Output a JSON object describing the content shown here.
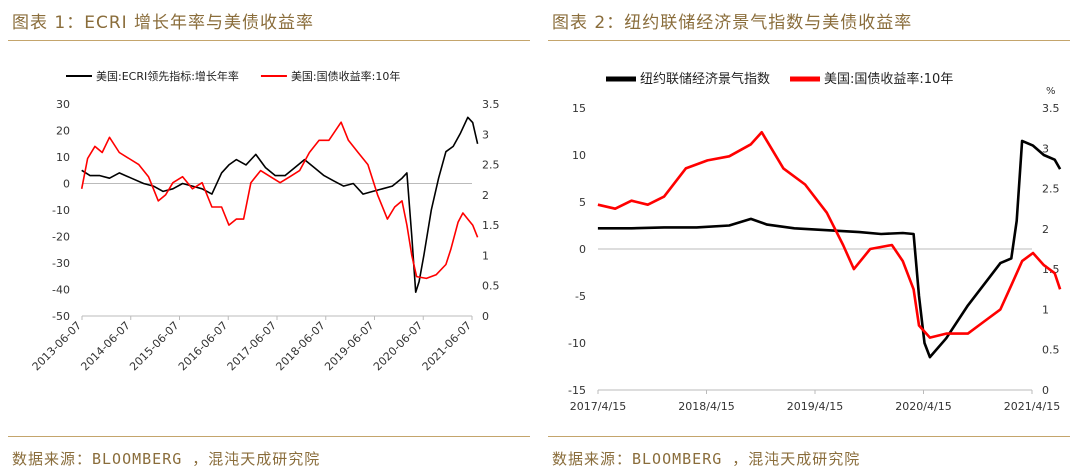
{
  "charts": [
    {
      "title": "图表 1：ECRI 增长年率与美债收益率",
      "source": "数据来源：BLOOMBERG ，混沌天成研究院"
    },
    {
      "title": "图表 2：纽约联储经济景气指数与美债收益率",
      "source": "数据来源：BLOOMBERG ，混沌天成研究院"
    }
  ],
  "chart_data": [
    {
      "type": "line",
      "title": "图表 1：ECRI 增长年率与美债收益率",
      "x_ticks": [
        "2013-06-07",
        "2014-06-07",
        "2015-06-07",
        "2016-06-07",
        "2017-06-07",
        "2018-06-07",
        "2019-06-07",
        "2020-06-07",
        "2021-06-07"
      ],
      "ylim_left": [
        -50,
        30
      ],
      "yticks_left": [
        30,
        20,
        10,
        0,
        -10,
        -20,
        -30,
        -40,
        -50
      ],
      "ylim_right": [
        0,
        3.5
      ],
      "yticks_right": [
        3.5,
        3,
        2.5,
        2,
        1.5,
        1,
        0.5,
        0
      ],
      "legend_position": "top",
      "grid": false,
      "series": [
        {
          "name": "美国:ECRI领先指标:增长年率",
          "axis": "left",
          "color": "#000000",
          "x": [
            2013.43,
            2013.6,
            2013.8,
            2014.0,
            2014.2,
            2014.45,
            2014.7,
            2014.9,
            2015.1,
            2015.3,
            2015.5,
            2015.7,
            2015.9,
            2016.1,
            2016.3,
            2016.45,
            2016.6,
            2016.8,
            2017.0,
            2017.2,
            2017.4,
            2017.6,
            2017.8,
            2018.0,
            2018.2,
            2018.4,
            2018.6,
            2018.8,
            2019.0,
            2019.2,
            2019.4,
            2019.6,
            2019.8,
            2020.0,
            2020.1,
            2020.2,
            2020.28,
            2020.35,
            2020.45,
            2020.6,
            2020.75,
            2020.9,
            2021.05,
            2021.2,
            2021.35,
            2021.45,
            2021.55
          ],
          "y": [
            5,
            3,
            3,
            2,
            4,
            2,
            0,
            -1,
            -3,
            -2,
            0,
            -1,
            -2,
            -4,
            4,
            7,
            9,
            7,
            11,
            6,
            3,
            3,
            6,
            9,
            6,
            3,
            1,
            -1,
            0,
            -4,
            -3,
            -2,
            -1,
            2,
            4,
            -20,
            -41,
            -37,
            -27,
            -10,
            2,
            12,
            14,
            19,
            25,
            23,
            15
          ]
        },
        {
          "name": "美国:国债收益率:10年",
          "axis": "right",
          "color": "#ff0000",
          "x": [
            2013.43,
            2013.55,
            2013.7,
            2013.85,
            2014.0,
            2014.2,
            2014.4,
            2014.6,
            2014.8,
            2015.0,
            2015.15,
            2015.3,
            2015.5,
            2015.7,
            2015.9,
            2016.1,
            2016.3,
            2016.45,
            2016.6,
            2016.75,
            2016.9,
            2017.1,
            2017.3,
            2017.5,
            2017.7,
            2017.9,
            2018.1,
            2018.3,
            2018.5,
            2018.75,
            2018.9,
            2019.1,
            2019.3,
            2019.5,
            2019.7,
            2019.85,
            2020.0,
            2020.1,
            2020.2,
            2020.3,
            2020.5,
            2020.7,
            2020.9,
            2021.0,
            2021.15,
            2021.25,
            2021.35,
            2021.45,
            2021.55
          ],
          "y": [
            2.1,
            2.6,
            2.8,
            2.7,
            2.95,
            2.7,
            2.6,
            2.5,
            2.3,
            1.9,
            2.0,
            2.2,
            2.3,
            2.1,
            2.2,
            1.8,
            1.8,
            1.5,
            1.6,
            1.6,
            2.2,
            2.4,
            2.3,
            2.2,
            2.3,
            2.4,
            2.7,
            2.9,
            2.9,
            3.2,
            2.9,
            2.7,
            2.5,
            2.0,
            1.6,
            1.8,
            1.9,
            1.5,
            1.0,
            0.65,
            0.62,
            0.68,
            0.85,
            1.1,
            1.55,
            1.7,
            1.6,
            1.5,
            1.3
          ]
        }
      ]
    },
    {
      "type": "line",
      "title": "图表 2：纽约联储经济景气指数与美债收益率",
      "x_ticks": [
        "2017/4/15",
        "2018/4/15",
        "2019/4/15",
        "2020/4/15",
        "2021/4/15"
      ],
      "ylim_left": [
        -15,
        15
      ],
      "yticks_left": [
        15,
        10,
        5,
        0,
        -5,
        -10,
        -15
      ],
      "ylim_right": [
        0,
        3.5
      ],
      "yticks_right": [
        3.5,
        3,
        2.5,
        2,
        1.5,
        1,
        0.5,
        0
      ],
      "right_axis_unit": "%",
      "legend_position": "top",
      "grid": false,
      "series": [
        {
          "name": "纽约联储经济景气指数",
          "axis": "left",
          "color": "#000000",
          "x": [
            2017.29,
            2017.6,
            2017.9,
            2018.2,
            2018.5,
            2018.7,
            2018.85,
            2019.1,
            2019.4,
            2019.7,
            2019.9,
            2020.1,
            2020.2,
            2020.25,
            2020.3,
            2020.35,
            2020.5,
            2020.7,
            2020.9,
            2021.0,
            2021.1,
            2021.15,
            2021.2,
            2021.3,
            2021.4,
            2021.5,
            2021.55
          ],
          "y": [
            2.2,
            2.2,
            2.3,
            2.3,
            2.5,
            3.2,
            2.6,
            2.2,
            2.0,
            1.8,
            1.6,
            1.7,
            1.6,
            -5,
            -10,
            -11.5,
            -9.5,
            -6,
            -3,
            -1.5,
            -1,
            3,
            11.5,
            11,
            10,
            9.5,
            8.5
          ]
        },
        {
          "name": "美国:国债收益率:10年",
          "axis": "right",
          "color": "#ff0000",
          "x": [
            2017.29,
            2017.45,
            2017.6,
            2017.75,
            2017.9,
            2018.1,
            2018.3,
            2018.5,
            2018.7,
            2018.8,
            2019.0,
            2019.2,
            2019.4,
            2019.55,
            2019.65,
            2019.8,
            2020.0,
            2020.1,
            2020.2,
            2020.25,
            2020.35,
            2020.5,
            2020.7,
            2020.85,
            2021.0,
            2021.1,
            2021.2,
            2021.3,
            2021.4,
            2021.5,
            2021.55
          ],
          "y": [
            2.3,
            2.25,
            2.35,
            2.3,
            2.4,
            2.75,
            2.85,
            2.9,
            3.05,
            3.2,
            2.75,
            2.55,
            2.2,
            1.8,
            1.5,
            1.75,
            1.8,
            1.6,
            1.25,
            0.8,
            0.65,
            0.7,
            0.7,
            0.85,
            1.0,
            1.3,
            1.6,
            1.7,
            1.55,
            1.45,
            1.25
          ]
        }
      ]
    }
  ]
}
